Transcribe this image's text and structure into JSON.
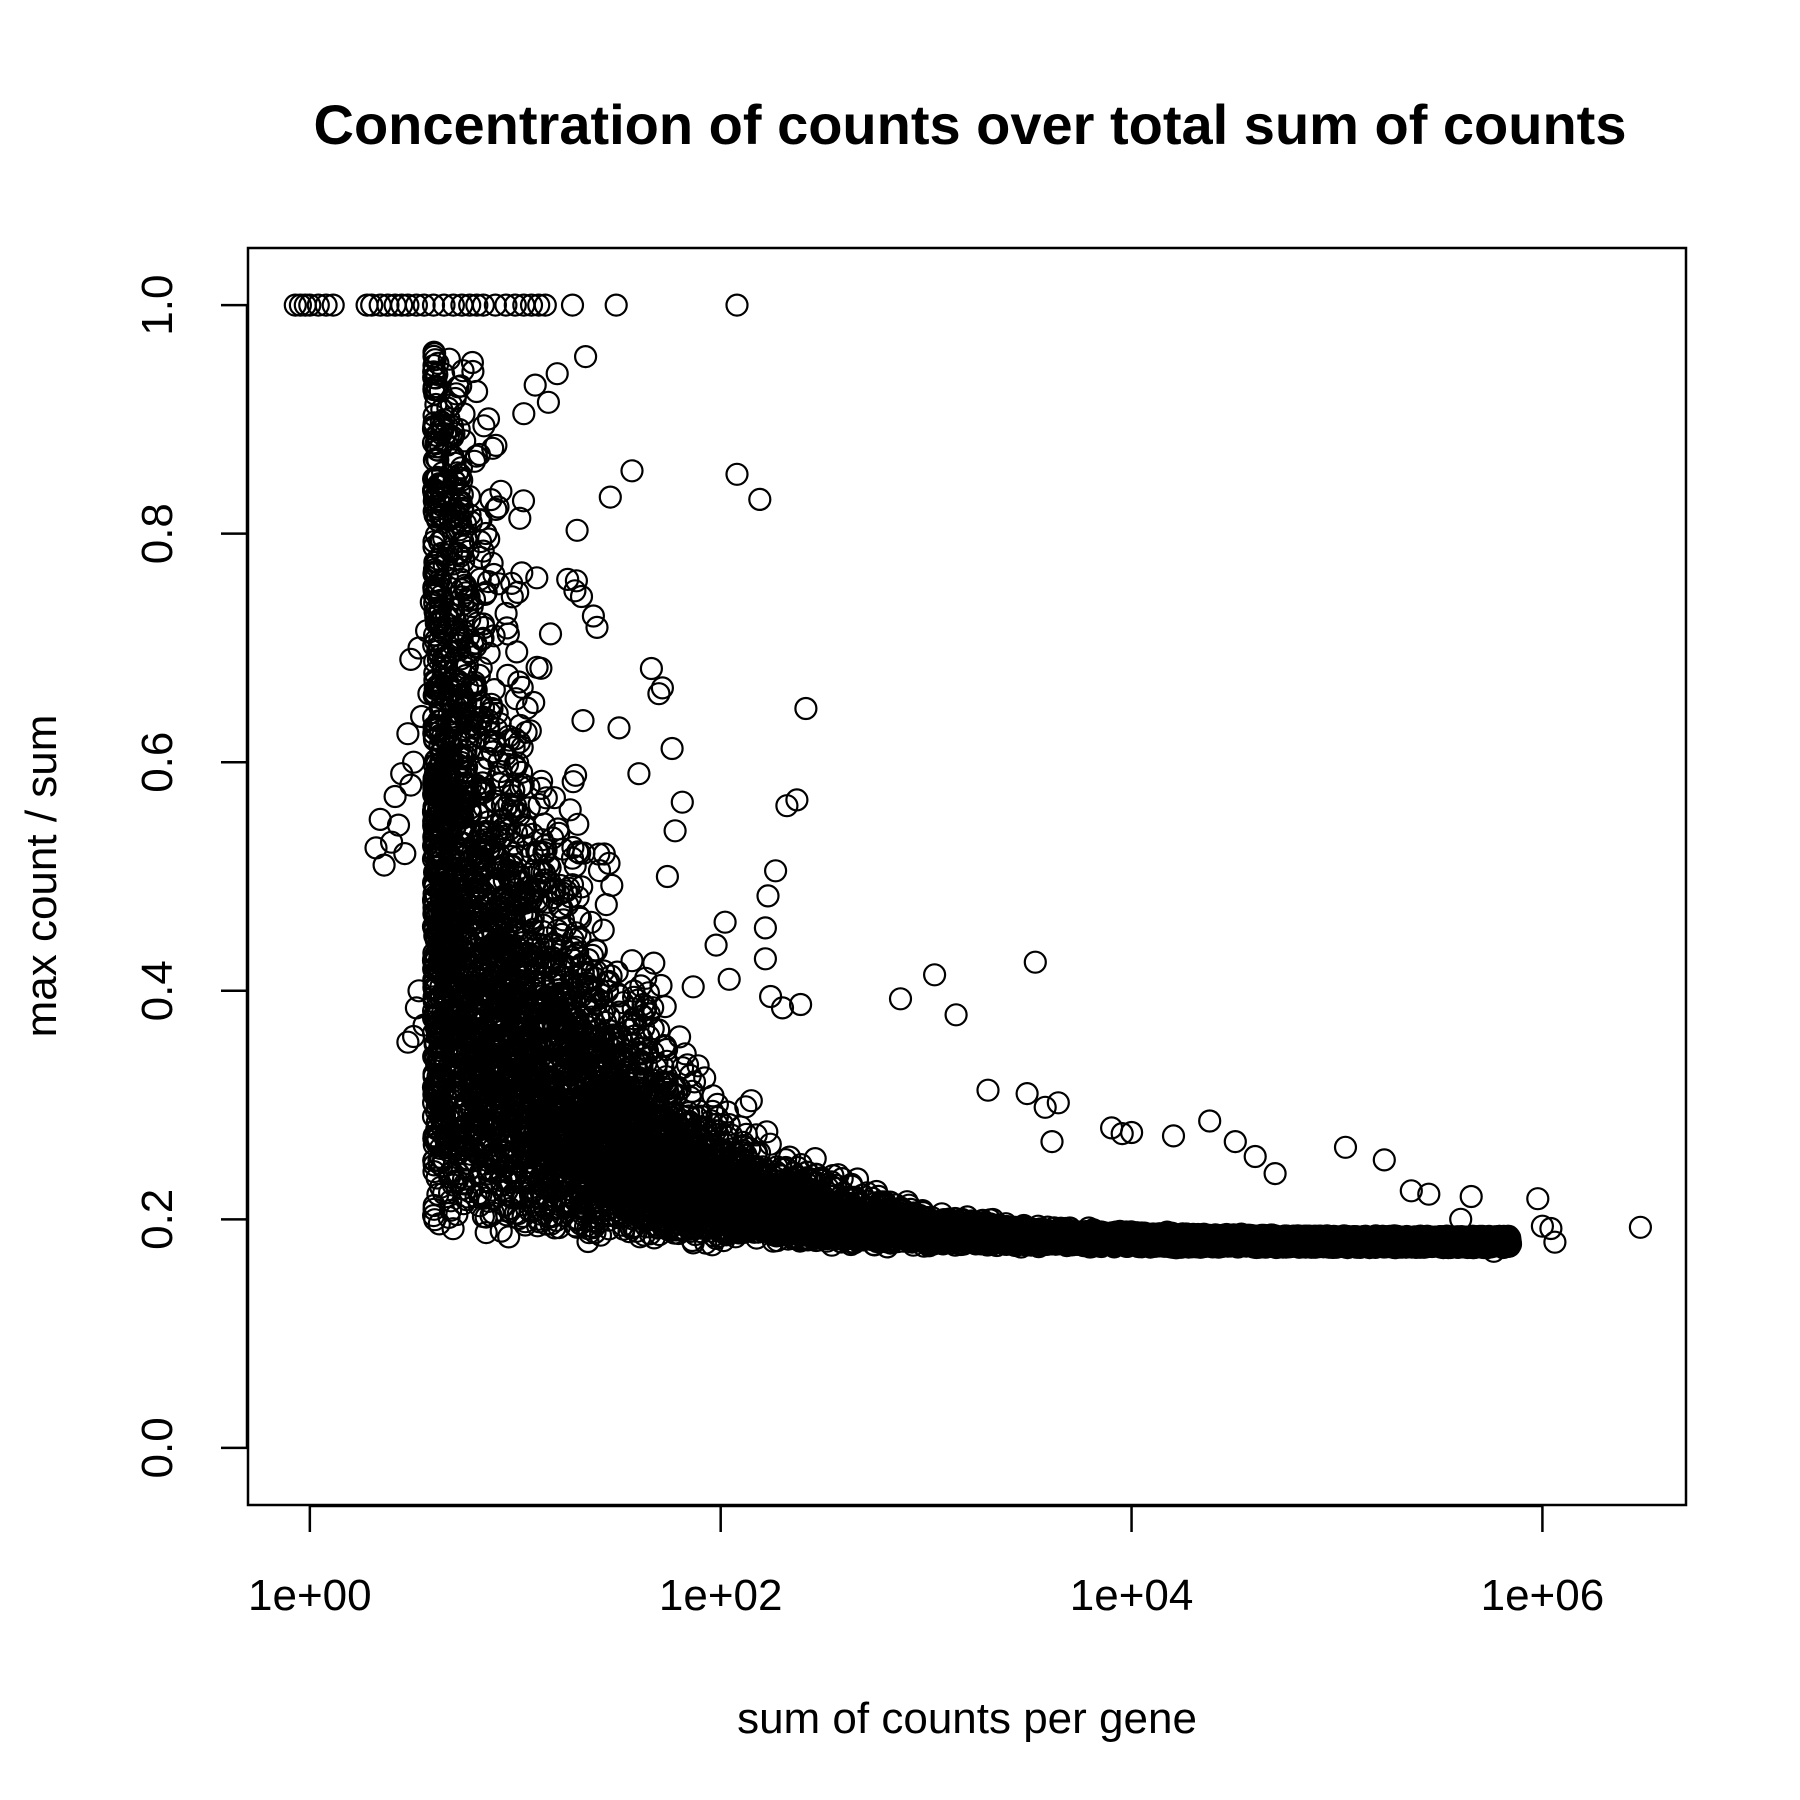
{
  "chart_data": {
    "type": "scatter",
    "title": "Concentration of counts over total sum of counts",
    "xlabel": "sum of counts per gene",
    "ylabel": "max count / sum",
    "x_scale": "log10",
    "xlim": [
      0.5,
      5000000
    ],
    "ylim": [
      -0.05,
      1.05
    ],
    "x_ticks": [
      {
        "value": 1,
        "label": "1e+00"
      },
      {
        "value": 100,
        "label": "1e+02"
      },
      {
        "value": 10000,
        "label": "1e+04"
      },
      {
        "value": 1000000,
        "label": "1e+06"
      }
    ],
    "y_ticks": [
      {
        "value": 0.0,
        "label": "0.0"
      },
      {
        "value": 0.2,
        "label": "0.2"
      },
      {
        "value": 0.4,
        "label": "0.4"
      },
      {
        "value": 0.6,
        "label": "0.6"
      },
      {
        "value": 0.8,
        "label": "0.8"
      },
      {
        "value": 1.0,
        "label": "1.0"
      }
    ],
    "grid": false,
    "marker": "open-circle",
    "marker_color": "#000000",
    "points": [
      [
        0.85,
        1.0
      ],
      [
        0.9,
        1.0
      ],
      [
        0.95,
        1.0
      ],
      [
        1.0,
        1.0
      ],
      [
        1.1,
        1.0
      ],
      [
        1.2,
        1.0
      ],
      [
        1.3,
        1.0
      ],
      [
        1.9,
        1.0
      ],
      [
        2.0,
        1.0
      ],
      [
        2.2,
        1.0
      ],
      [
        2.4,
        1.0
      ],
      [
        2.6,
        1.0
      ],
      [
        2.8,
        1.0
      ],
      [
        3.0,
        1.0
      ],
      [
        3.3,
        1.0
      ],
      [
        3.6,
        1.0
      ],
      [
        4.0,
        1.0
      ],
      [
        4.5,
        1.0
      ],
      [
        5.0,
        1.0
      ],
      [
        5.5,
        1.0
      ],
      [
        6.0,
        1.0
      ],
      [
        6.5,
        1.0
      ],
      [
        7.0,
        1.0
      ],
      [
        8.0,
        1.0
      ],
      [
        9.0,
        1.0
      ],
      [
        10.0,
        1.0
      ],
      [
        11.0,
        1.0
      ],
      [
        12.0,
        1.0
      ],
      [
        13.0,
        1.0
      ],
      [
        14.0,
        1.0
      ],
      [
        19.0,
        1.0
      ],
      [
        31.0,
        1.0
      ],
      [
        120.0,
        1.0
      ],
      [
        22.0,
        0.955
      ],
      [
        16.0,
        0.94
      ],
      [
        14.5,
        0.915
      ],
      [
        12.5,
        0.93
      ],
      [
        11.0,
        0.905
      ],
      [
        37.0,
        0.855
      ],
      [
        120.0,
        0.852
      ],
      [
        155.0,
        0.83
      ],
      [
        29.0,
        0.832
      ],
      [
        20.0,
        0.803
      ],
      [
        18.0,
        0.76
      ],
      [
        19.5,
        0.75
      ],
      [
        21.0,
        0.745
      ],
      [
        25.0,
        0.718
      ],
      [
        24.0,
        0.728
      ],
      [
        46.0,
        0.682
      ],
      [
        50.0,
        0.66
      ],
      [
        52.0,
        0.665
      ],
      [
        260.0,
        0.647
      ],
      [
        58.0,
        0.612
      ],
      [
        32.0,
        0.63
      ],
      [
        40.0,
        0.59
      ],
      [
        65.0,
        0.565
      ],
      [
        210.0,
        0.562
      ],
      [
        235.0,
        0.567
      ],
      [
        60.0,
        0.54
      ],
      [
        55.0,
        0.5
      ],
      [
        185.0,
        0.505
      ],
      [
        170.0,
        0.483
      ],
      [
        165.0,
        0.455
      ],
      [
        105.0,
        0.46
      ],
      [
        95.0,
        0.44
      ],
      [
        110.0,
        0.41
      ],
      [
        165.0,
        0.428
      ],
      [
        175.0,
        0.395
      ],
      [
        200.0,
        0.385
      ],
      [
        245.0,
        0.388
      ],
      [
        3400.0,
        0.425
      ],
      [
        1100.0,
        0.414
      ],
      [
        750.0,
        0.393
      ],
      [
        1400.0,
        0.379
      ],
      [
        2000.0,
        0.313
      ],
      [
        3100.0,
        0.31
      ],
      [
        3800.0,
        0.298
      ],
      [
        4400.0,
        0.302
      ],
      [
        4100.0,
        0.268
      ],
      [
        8000.0,
        0.28
      ],
      [
        9000.0,
        0.275
      ],
      [
        10000.0,
        0.276
      ],
      [
        16000.0,
        0.273
      ],
      [
        24000.0,
        0.286
      ],
      [
        32000.0,
        0.268
      ],
      [
        40000.0,
        0.255
      ],
      [
        50000.0,
        0.24
      ],
      [
        110000.0,
        0.263
      ],
      [
        170000.0,
        0.252
      ],
      [
        230000.0,
        0.225
      ],
      [
        280000.0,
        0.222
      ],
      [
        450000.0,
        0.22
      ],
      [
        950000.0,
        0.218
      ],
      [
        1000000.0,
        0.194
      ],
      [
        1100000.0,
        0.192
      ],
      [
        1150000.0,
        0.18
      ],
      [
        3000000.0,
        0.193
      ],
      [
        650000.0,
        0.18
      ],
      [
        580000.0,
        0.172
      ],
      [
        400000.0,
        0.2
      ],
      [
        13.0,
        0.2
      ],
      [
        17.0,
        0.215
      ],
      [
        20.0,
        0.193
      ],
      [
        22.0,
        0.194
      ],
      [
        9.5,
        0.22
      ],
      [
        5.0,
        0.23
      ],
      [
        5.3,
        0.24
      ],
      [
        5.6,
        0.235
      ],
      [
        4.2,
        0.28
      ],
      [
        4.0,
        0.29
      ],
      [
        4.4,
        0.3
      ],
      [
        4.1,
        0.307
      ],
      [
        3.0,
        0.355
      ],
      [
        3.2,
        0.36
      ],
      [
        3.3,
        0.385
      ],
      [
        3.4,
        0.4
      ],
      [
        3.6,
        0.37
      ],
      [
        2.1,
        0.525
      ],
      [
        2.3,
        0.51
      ],
      [
        2.5,
        0.53
      ],
      [
        2.2,
        0.55
      ],
      [
        2.7,
        0.545
      ],
      [
        2.6,
        0.57
      ],
      [
        2.9,
        0.52
      ],
      [
        3.1,
        0.58
      ],
      [
        3.2,
        0.6
      ],
      [
        3.0,
        0.625
      ],
      [
        3.5,
        0.64
      ],
      [
        3.8,
        0.66
      ],
      [
        3.1,
        0.69
      ],
      [
        3.4,
        0.7
      ],
      [
        3.7,
        0.715
      ],
      [
        3.9,
        0.74
      ],
      [
        2.8,
        0.59
      ]
    ]
  }
}
